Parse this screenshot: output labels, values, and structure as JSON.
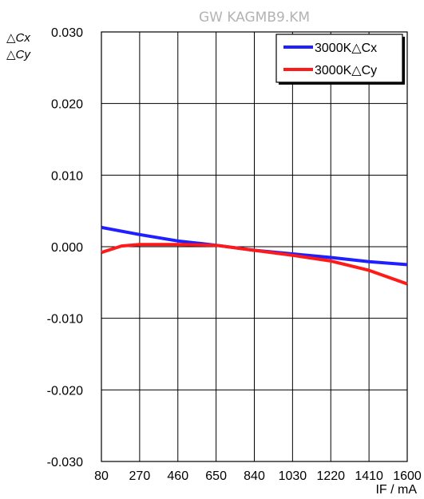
{
  "chart_data": {
    "type": "line",
    "title": "GW KAGMB9.KM",
    "ylabel_lines": [
      "△Cx",
      "△Cy"
    ],
    "xlabel": "IF / mA",
    "x_ticks": [
      80,
      270,
      460,
      650,
      840,
      1030,
      1220,
      1410,
      1600
    ],
    "x_tick_labels": [
      "80",
      "270",
      "460",
      "650",
      "840",
      "1030",
      "1220",
      "1410",
      "1600"
    ],
    "y_ticks": [
      -0.03,
      -0.02,
      -0.01,
      0.0,
      0.01,
      0.02,
      0.03
    ],
    "y_tick_labels": [
      "-0.030",
      "-0.020",
      "-0.010",
      "0.000",
      "0.010",
      "0.020",
      "0.030"
    ],
    "xlim": [
      80,
      1600
    ],
    "ylim": [
      -0.03,
      0.03
    ],
    "grid": true,
    "legend_position": "top-right",
    "series": [
      {
        "name": "3000K△Cx",
        "color": "#1f1fff",
        "x": [
          80,
          270,
          460,
          650,
          840,
          1030,
          1220,
          1410,
          1600
        ],
        "y": [
          0.0027,
          0.0017,
          0.0008,
          0.0002,
          -0.0005,
          -0.001,
          -0.0015,
          -0.0021,
          -0.0025
        ]
      },
      {
        "name": "3000K△Cy",
        "color": "#ff1a1a",
        "x": [
          80,
          180,
          270,
          460,
          650,
          840,
          1030,
          1220,
          1410,
          1600
        ],
        "y": [
          -0.0008,
          0.0001,
          0.0003,
          0.0003,
          0.0002,
          -0.0005,
          -0.0012,
          -0.002,
          -0.0033,
          -0.0052
        ]
      }
    ]
  }
}
